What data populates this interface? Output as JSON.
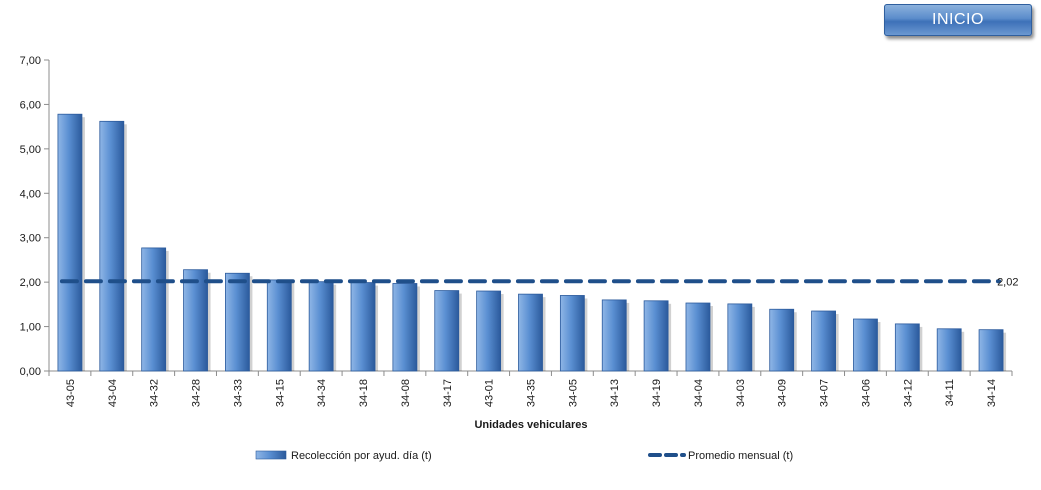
{
  "inicio_button": {
    "label": "INICIO"
  },
  "colors": {
    "bar_light": "#8fb6e6",
    "bar_mid": "#4a7fc6",
    "bar_dark": "#2b5a9c",
    "average_line": "#1f4f8a",
    "axis": "#8c8c8c"
  },
  "chart_data": {
    "type": "bar",
    "xlabel": "Unidades vehiculares",
    "ylabel": "",
    "ylim": [
      0,
      7
    ],
    "yticks": [
      "0,00",
      "1,00",
      "2,00",
      "3,00",
      "4,00",
      "5,00",
      "6,00",
      "7,00"
    ],
    "grid": false,
    "legend_position": "bottom",
    "categories": [
      "43-05",
      "43-04",
      "34-32",
      "34-28",
      "34-33",
      "34-15",
      "34-34",
      "34-18",
      "34-08",
      "34-17",
      "43-01",
      "34-35",
      "34-05",
      "34-13",
      "34-19",
      "34-04",
      "34-03",
      "34-09",
      "34-07",
      "34-06",
      "34-12",
      "34-11",
      "34-14"
    ],
    "series": [
      {
        "name": "Recolección por ayud. día (t)",
        "kind": "bar",
        "values": [
          5.78,
          5.62,
          2.77,
          2.28,
          2.2,
          2.05,
          2.01,
          1.99,
          1.97,
          1.81,
          1.8,
          1.73,
          1.7,
          1.6,
          1.58,
          1.53,
          1.51,
          1.39,
          1.35,
          1.17,
          1.06,
          0.95,
          0.93
        ]
      },
      {
        "name": "Promedio mensual (t)",
        "kind": "line",
        "style": "dashed",
        "value": 2.02,
        "label": "2,02"
      }
    ]
  }
}
